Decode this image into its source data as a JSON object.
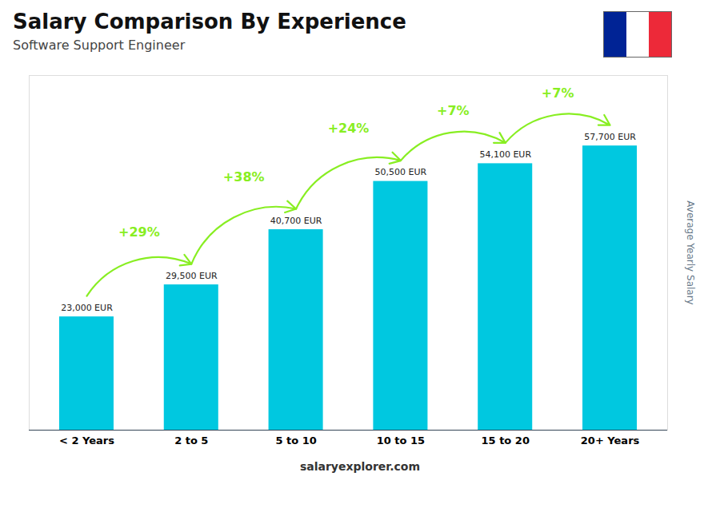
{
  "chart_data": {
    "type": "bar",
    "title": "Salary Comparison By Experience",
    "subtitle": "Software Support Engineer",
    "caption": "salaryexplorer.com",
    "ylabel": "Average Yearly Salary",
    "categories": [
      "< 2 Years",
      "2 to 5",
      "5 to 10",
      "10 to 15",
      "15 to 20",
      "20+ Years"
    ],
    "values": [
      23000,
      29500,
      40700,
      50500,
      54100,
      57700
    ],
    "value_labels": [
      "23,000 EUR",
      "29,500 EUR",
      "40,700 EUR",
      "50,500 EUR",
      "54,100 EUR",
      "57,700 EUR"
    ],
    "data_labels": true,
    "color": "#00c8e0",
    "annotations": [
      {
        "text": "+29%",
        "color": "#88ee22"
      },
      {
        "text": "+38%",
        "color": "#88ee22"
      },
      {
        "text": "+24%",
        "color": "#88ee22"
      },
      {
        "text": "+7%",
        "color": "#88ee22"
      },
      {
        "text": "+7%",
        "color": "#88ee22"
      }
    ],
    "ylim": [
      0,
      72000
    ],
    "tick_labels": "x",
    "grid": false
  }
}
